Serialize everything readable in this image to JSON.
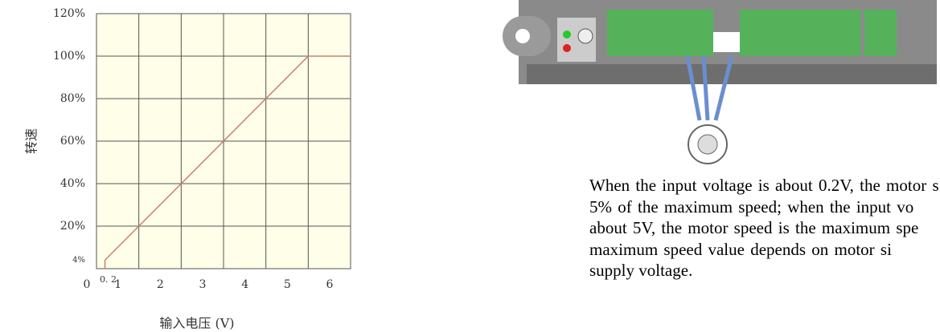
{
  "chart_data": {
    "type": "line",
    "y_label": "转速",
    "x_label": "输入电压 (V)",
    "x": [
      0.2,
      0.2,
      5,
      6
    ],
    "series": [
      {
        "color": "#c9806f",
        "values": [
          0,
          4,
          100,
          100
        ]
      }
    ],
    "xlim": [
      0,
      6
    ],
    "ylim": [
      0,
      120
    ],
    "xticks": [
      0,
      {
        "value": 0.2,
        "label": "0. 2"
      },
      1,
      2,
      3,
      4,
      5,
      6
    ],
    "yticks": [
      {
        "value": 4,
        "label": "4%"
      },
      {
        "value": 20,
        "label": "20%"
      },
      {
        "value": 40,
        "label": "40%"
      },
      {
        "value": 60,
        "label": "60%"
      },
      {
        "value": 80,
        "label": "80%"
      },
      {
        "value": 100,
        "label": "100%"
      },
      {
        "value": 120,
        "label": "120%"
      }
    ],
    "grid": true,
    "background": "#fffee8"
  },
  "text": {
    "lines": [
      "When the input voltage is about 0.2V, the motor s",
      "5% of the maximum speed; when the input vo",
      "about 5V, the motor speed is the maximum spe",
      "maximum speed value depends on motor si",
      "supply voltage."
    ]
  }
}
